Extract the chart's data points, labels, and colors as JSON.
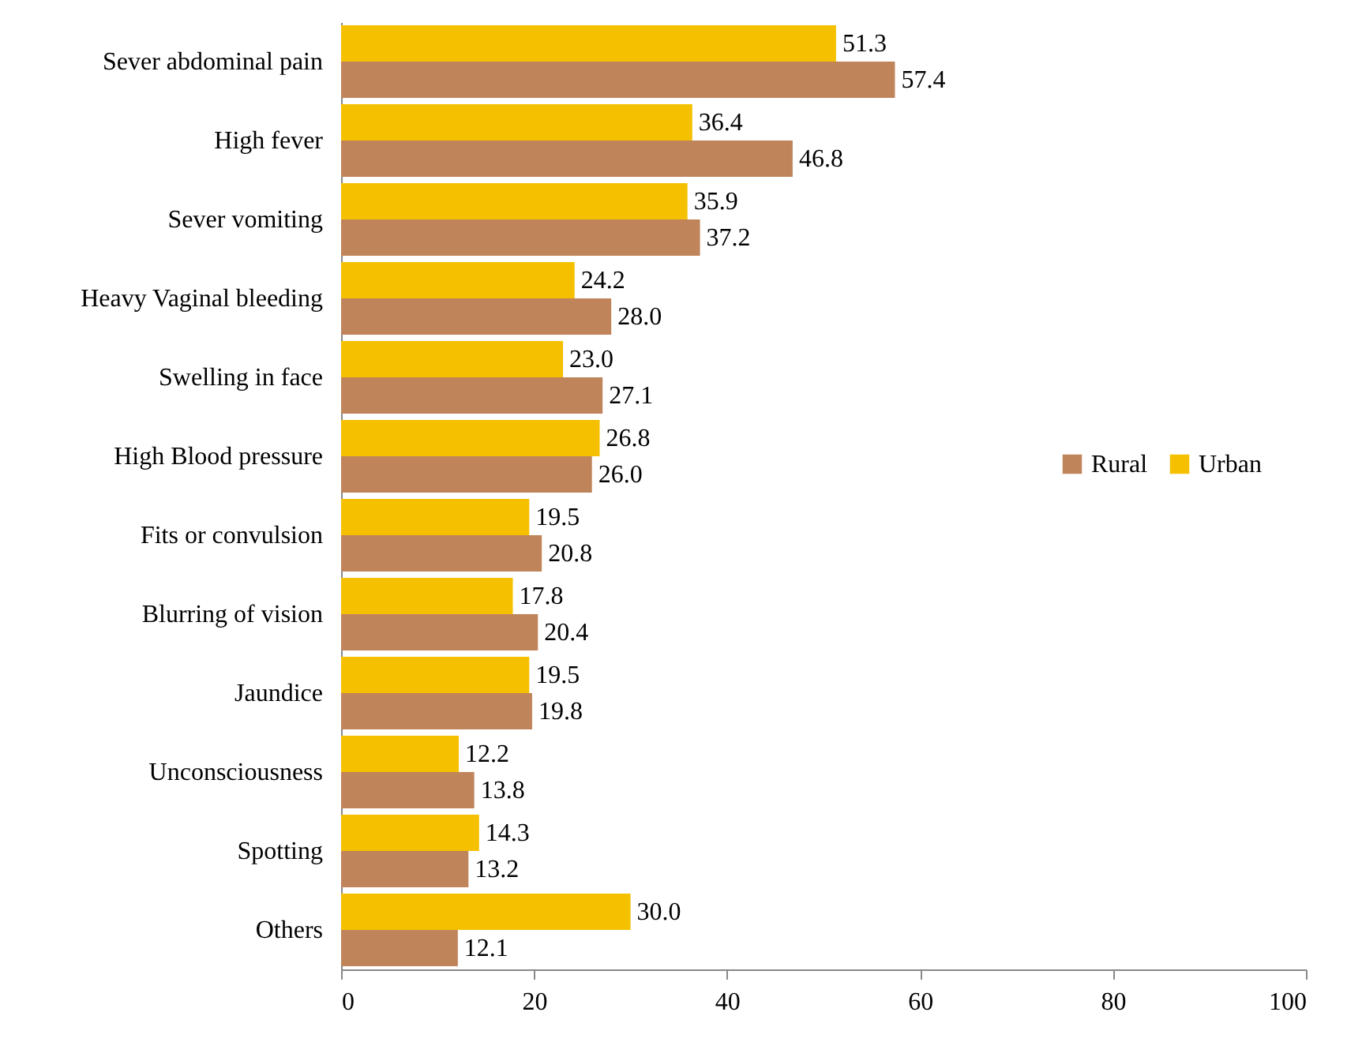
{
  "chart_data": {
    "type": "bar",
    "orientation": "horizontal",
    "categories": [
      "Sever abdominal pain",
      "High fever",
      "Sever vomiting",
      "Heavy Vaginal bleeding",
      "Swelling in face",
      "High Blood pressure",
      "Fits or convulsion",
      "Blurring of vision",
      "Jaundice",
      "Unconsciousness",
      "Spotting",
      "Others"
    ],
    "series": [
      {
        "name": "Rural",
        "color": "#c0845a",
        "values": [
          57.4,
          46.8,
          37.2,
          28.0,
          27.1,
          26.0,
          20.8,
          20.4,
          19.8,
          13.8,
          13.2,
          12.1
        ],
        "value_labels": [
          "57.4",
          "46.8",
          "37.2",
          "28.0",
          "27.1",
          "26.0",
          "20.8",
          "20.4",
          "19.8",
          "13.8",
          "13.2",
          "12.1"
        ]
      },
      {
        "name": "Urban",
        "color": "#f5c000",
        "values": [
          51.3,
          36.4,
          35.9,
          24.2,
          23.0,
          26.8,
          19.5,
          17.8,
          19.5,
          12.2,
          14.3,
          30.0
        ],
        "value_labels": [
          "51.3",
          "36.4",
          "35.9",
          "24.2",
          "23.0",
          "26.8",
          "19.5",
          "17.8",
          "19.5",
          "12.2",
          "14.3",
          "30.0"
        ]
      }
    ],
    "xlim": [
      0,
      100
    ],
    "xticks": [
      0,
      20,
      40,
      60,
      80,
      100
    ],
    "grid": false,
    "legend": "right"
  }
}
